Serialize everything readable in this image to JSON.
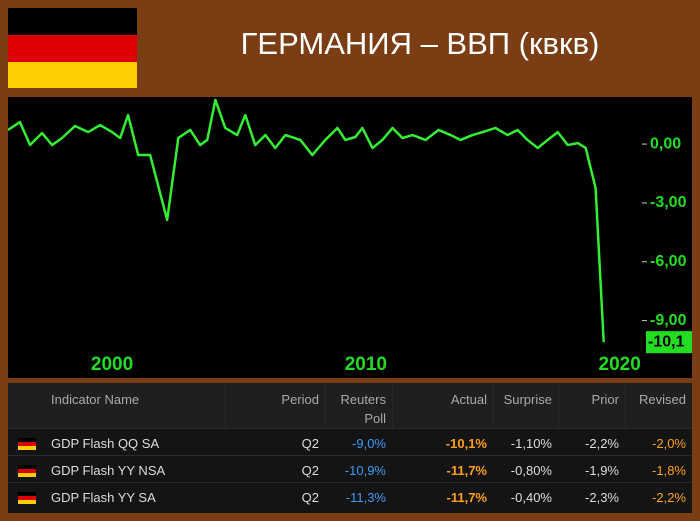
{
  "title": "ГЕРМАНИЯ – ВВП (квкв)",
  "chart_data": {
    "type": "line",
    "color": "#33ee33",
    "x": [
      1995.9,
      1996.37,
      1996.77,
      1997.24,
      1997.64,
      1998.03,
      1998.54,
      1999.06,
      1999.53,
      2000.0,
      2000.32,
      2000.63,
      2001.03,
      2001.5,
      2002.17,
      2002.61,
      2003.08,
      2003.47,
      2003.75,
      2004.07,
      2004.46,
      2004.93,
      2005.25,
      2005.64,
      2006.04,
      2006.43,
      2006.83,
      2007.42,
      2007.89,
      2008.4,
      2008.88,
      2009.19,
      2009.59,
      2009.86,
      2010.26,
      2010.65,
      2011.05,
      2011.44,
      2011.84,
      2012.35,
      2012.86,
      2013.34,
      2013.73,
      2014.2,
      2014.6,
      2015.11,
      2015.58,
      2015.98,
      2016.37,
      2016.77,
      2017.16,
      2017.56,
      2017.95,
      2018.35,
      2018.66,
      2019.05,
      2019.37
    ],
    "values": [
      0.72,
      1.12,
      -0.05,
      0.56,
      -0.05,
      0.31,
      0.92,
      0.61,
      0.97,
      0.61,
      0.31,
      1.48,
      -0.56,
      -0.56,
      -3.87,
      0.31,
      0.72,
      -0.05,
      0.21,
      2.25,
      0.82,
      0.46,
      1.48,
      -0.05,
      0.46,
      -0.2,
      0.46,
      0.21,
      -0.56,
      0.21,
      0.82,
      0.21,
      0.36,
      0.82,
      -0.2,
      0.21,
      0.82,
      0.31,
      0.46,
      0.21,
      0.72,
      0.46,
      0.21,
      0.46,
      0.61,
      0.82,
      0.46,
      0.72,
      0.21,
      -0.2,
      0.21,
      0.61,
      -0.05,
      0.05,
      -0.2,
      -2.24,
      -10.1
    ],
    "last_value_label": "-10,1",
    "xlim": [
      1995.9,
      2020.8
    ],
    "xticks": [
      2000,
      2010,
      2020
    ],
    "ylim": [
      -10.5,
      2.4
    ],
    "yticks": [
      {
        "value": 0,
        "label": "0,00"
      },
      {
        "value": -3,
        "label": "-3,00"
      },
      {
        "value": -6,
        "label": "-6,00"
      },
      {
        "value": -9,
        "label": "-9,00"
      }
    ]
  },
  "table": {
    "headers": [
      "Indicator Name",
      "Period",
      "Reuters\nPoll",
      "Actual",
      "Surprise",
      "Prior",
      "Revised"
    ],
    "rows": [
      [
        "GDP Flash QQ SA",
        "Q2",
        "-9,0%",
        "-10,1%",
        "-1,10%",
        "-2,2%",
        "-2,0%"
      ],
      [
        "GDP Flash YY NSA",
        "Q2",
        "-10,9%",
        "-11,7%",
        "-0,80%",
        "-1,9%",
        "-1,8%"
      ],
      [
        "GDP Flash YY SA",
        "Q2",
        "-11,3%",
        "-11,7%",
        "-0,40%",
        "-2,3%",
        "-2,2%"
      ]
    ]
  }
}
